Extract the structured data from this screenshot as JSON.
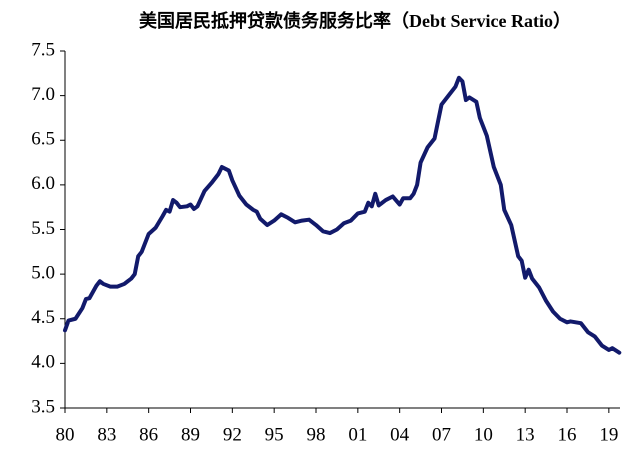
{
  "chart_data": {
    "type": "line",
    "title": "美国居民抵押贷款债务服务比率（Debt Service Ratio）",
    "x": [
      1980.0,
      1980.25,
      1980.75,
      1981.25,
      1981.5,
      1981.75,
      1982.25,
      1982.5,
      1982.75,
      1983.25,
      1983.75,
      1984.25,
      1984.75,
      1985.0,
      1985.25,
      1985.5,
      1986.0,
      1986.5,
      1987.0,
      1987.25,
      1987.5,
      1987.75,
      1988.0,
      1988.25,
      1988.75,
      1989.0,
      1989.25,
      1989.5,
      1990.0,
      1990.5,
      1991.0,
      1991.25,
      1991.5,
      1991.75,
      1992.0,
      1992.5,
      1993.0,
      1993.5,
      1993.75,
      1994.0,
      1994.5,
      1995.0,
      1995.5,
      1996.0,
      1996.5,
      1997.0,
      1997.5,
      1998.0,
      1998.5,
      1999.0,
      1999.5,
      2000.0,
      2000.5,
      2001.0,
      2001.5,
      2001.75,
      2002.0,
      2002.25,
      2002.5,
      2003.0,
      2003.5,
      2004.0,
      2004.25,
      2004.75,
      2005.0,
      2005.25,
      2005.5,
      2006.0,
      2006.5,
      2007.0,
      2007.5,
      2008.0,
      2008.25,
      2008.5,
      2008.75,
      2009.0,
      2009.5,
      2009.75,
      2010.25,
      2010.75,
      2011.25,
      2011.5,
      2012.0,
      2012.5,
      2012.75,
      2013.0,
      2013.25,
      2013.5,
      2014.0,
      2014.5,
      2015.0,
      2015.5,
      2016.0,
      2016.25,
      2017.0,
      2017.5,
      2018.0,
      2018.5,
      2019.0,
      2019.25,
      2019.75
    ],
    "series": [
      {
        "name": "Debt Service Ratio",
        "color": "#121a6b",
        "values": [
          4.37,
          4.48,
          4.5,
          4.62,
          4.72,
          4.73,
          4.87,
          4.92,
          4.89,
          4.86,
          4.86,
          4.89,
          4.95,
          5.0,
          5.2,
          5.25,
          5.45,
          5.52,
          5.65,
          5.72,
          5.7,
          5.83,
          5.8,
          5.75,
          5.76,
          5.78,
          5.73,
          5.76,
          5.93,
          6.02,
          6.12,
          6.2,
          6.18,
          6.16,
          6.05,
          5.88,
          5.78,
          5.72,
          5.7,
          5.62,
          5.55,
          5.6,
          5.67,
          5.63,
          5.58,
          5.6,
          5.61,
          5.55,
          5.48,
          5.46,
          5.5,
          5.57,
          5.6,
          5.68,
          5.7,
          5.8,
          5.76,
          5.9,
          5.77,
          5.83,
          5.87,
          5.78,
          5.85,
          5.85,
          5.9,
          6.0,
          6.25,
          6.42,
          6.52,
          6.9,
          7.0,
          7.1,
          7.2,
          7.16,
          6.95,
          6.98,
          6.93,
          6.75,
          6.55,
          6.2,
          6.0,
          5.72,
          5.55,
          5.2,
          5.15,
          4.96,
          5.05,
          4.95,
          4.85,
          4.7,
          4.58,
          4.5,
          4.46,
          4.47,
          4.45,
          4.35,
          4.3,
          4.2,
          4.15,
          4.17,
          4.12
        ]
      }
    ],
    "xlim": [
      1980,
      2019.8
    ],
    "xticks": [
      {
        "value": 1980,
        "label": "80"
      },
      {
        "value": 1983,
        "label": "83"
      },
      {
        "value": 1986,
        "label": "86"
      },
      {
        "value": 1989,
        "label": "89"
      },
      {
        "value": 1992,
        "label": "92"
      },
      {
        "value": 1995,
        "label": "95"
      },
      {
        "value": 1998,
        "label": "98"
      },
      {
        "value": 2001,
        "label": "01"
      },
      {
        "value": 2004,
        "label": "04"
      },
      {
        "value": 2007,
        "label": "07"
      },
      {
        "value": 2010,
        "label": "10"
      },
      {
        "value": 2013,
        "label": "13"
      },
      {
        "value": 2016,
        "label": "16"
      },
      {
        "value": 2019,
        "label": "19"
      }
    ],
    "ylim": [
      3.5,
      7.5
    ],
    "yticks": [
      {
        "value": 3.5,
        "label": "3.5"
      },
      {
        "value": 4,
        "label": "4.0"
      },
      {
        "value": 4.5,
        "label": "4.5"
      },
      {
        "value": 5,
        "label": "5.0"
      },
      {
        "value": 5.5,
        "label": "5.5"
      },
      {
        "value": 6,
        "label": "6.0"
      },
      {
        "value": 6.5,
        "label": "6.5"
      },
      {
        "value": 7,
        "label": "7.0"
      },
      {
        "value": 7.5,
        "label": "7.5"
      }
    ],
    "grid": false
  }
}
